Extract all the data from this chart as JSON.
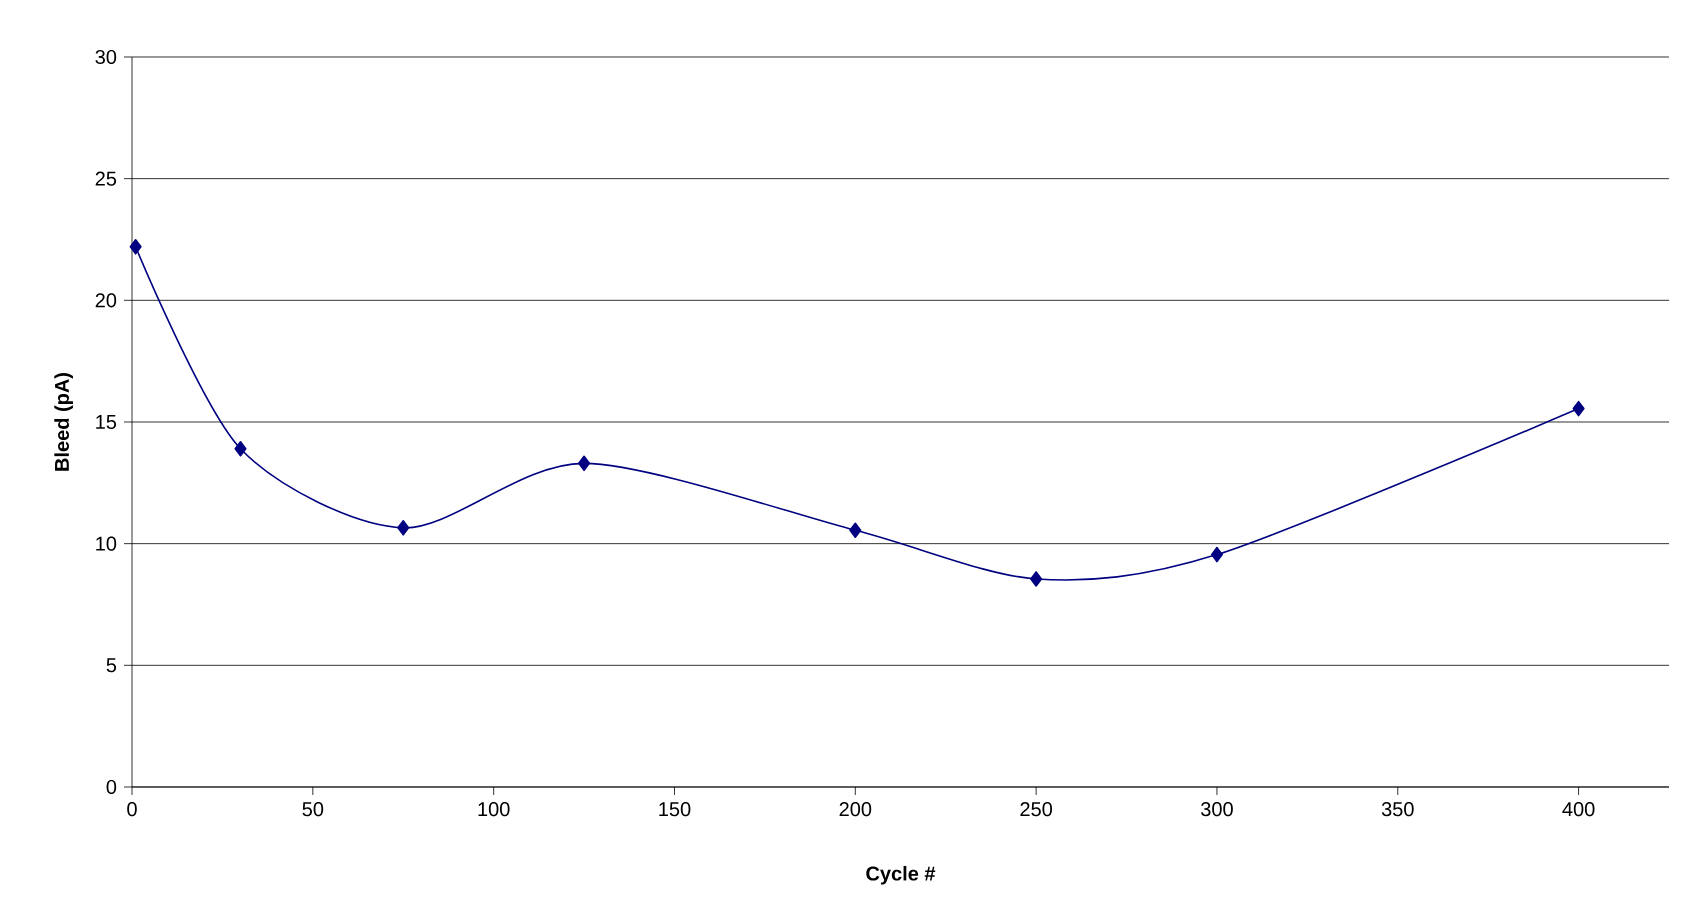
{
  "chart_data": {
    "type": "line",
    "xlabel": "Cycle #",
    "ylabel": "Bleed (pA)",
    "x": [
      1,
      30,
      75,
      125,
      200,
      250,
      300,
      400
    ],
    "series": [
      {
        "color": "#000080",
        "values": [
          22.2,
          13.9,
          10.65,
          13.3,
          10.55,
          8.55,
          9.55,
          15.55
        ]
      }
    ],
    "xlim": [
      0,
      425
    ],
    "xticks": [
      0,
      50,
      100,
      150,
      200,
      250,
      300,
      350,
      400
    ],
    "ylim": [
      0,
      30
    ],
    "yticks": [
      0,
      5,
      10,
      15,
      20,
      25,
      30
    ],
    "grid": "y",
    "marker": "diamond",
    "line_style": "solid"
  }
}
